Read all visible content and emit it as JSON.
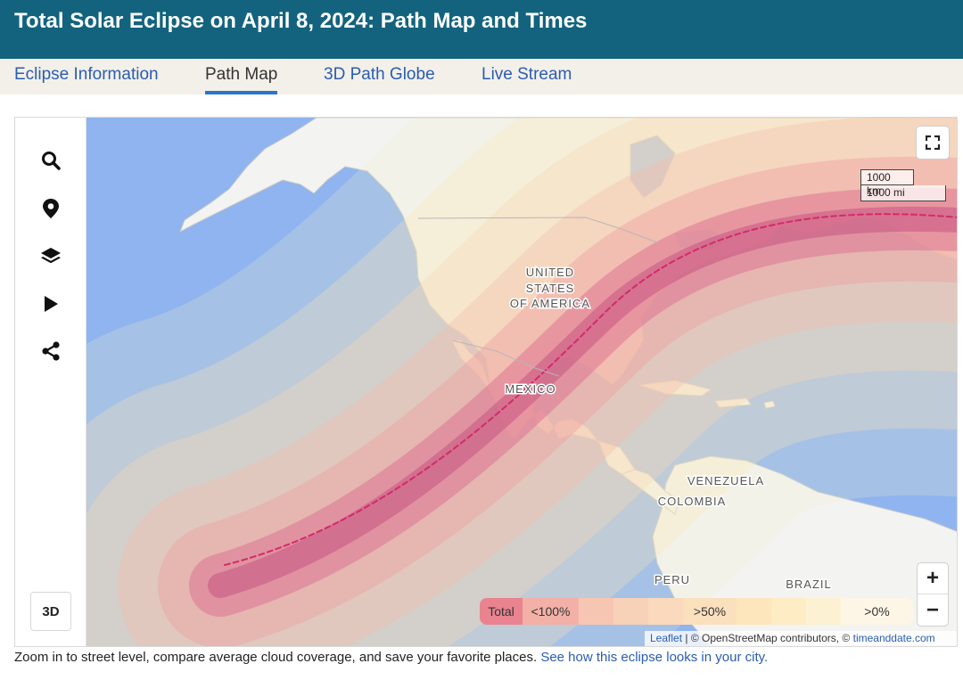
{
  "header": {
    "title": "Total Solar Eclipse on April 8, 2024: Path Map and Times"
  },
  "tabs": [
    {
      "label": "Eclipse Information",
      "active": false
    },
    {
      "label": "Path Map",
      "active": true
    },
    {
      "label": "3D Path Globe",
      "active": false
    },
    {
      "label": "Live Stream",
      "active": false
    }
  ],
  "sidebar": {
    "tools": [
      {
        "icon": "search-icon"
      },
      {
        "icon": "location-pin-icon"
      },
      {
        "icon": "layers-icon"
      },
      {
        "icon": "play-icon"
      },
      {
        "icon": "share-icon"
      }
    ],
    "mode_button": "3D"
  },
  "map": {
    "labels": {
      "usa_line1": "UNITED",
      "usa_line2": "STATES",
      "usa_line3": "OF AMERICA",
      "mexico": "MEXICO",
      "venezuela": "VENEZUELA",
      "colombia": "COLOMBIA",
      "peru": "PERU",
      "brazil": "BRAZIL"
    },
    "scale": {
      "km": "1000 km",
      "mi": "1000 mi"
    },
    "zoom": {
      "in": "+",
      "out": "−"
    },
    "legend": [
      {
        "label": "Total",
        "color": "#e9838f"
      },
      {
        "label": "<100%",
        "color": "#f2b0a6"
      },
      {
        "label": "",
        "color": "#f6c6b3"
      },
      {
        "label": "",
        "color": "#f8d1b9"
      },
      {
        "label": "",
        "color": "#fad9bd"
      },
      {
        "label": ">50%",
        "color": "#fbe0be"
      },
      {
        "label": "",
        "color": "#fde6bc"
      },
      {
        "label": "",
        "color": "#fdecc4"
      },
      {
        "label": "",
        "color": "#fcf1d2"
      },
      {
        "label": ">0%",
        "color": "#fdf6e6"
      }
    ],
    "attribution": {
      "leaflet": "Leaflet",
      "osm": "| © OpenStreetMap contributors, ©",
      "tad": "timeanddate.com"
    },
    "colors": {
      "ocean": "#8fb4ef",
      "land": "#f2f2f2",
      "path_line": "#d42a6a"
    }
  },
  "caption": {
    "text": "Zoom in to street level, compare average cloud coverage, and save your favorite places.",
    "link": "See how this eclipse looks in your city."
  }
}
